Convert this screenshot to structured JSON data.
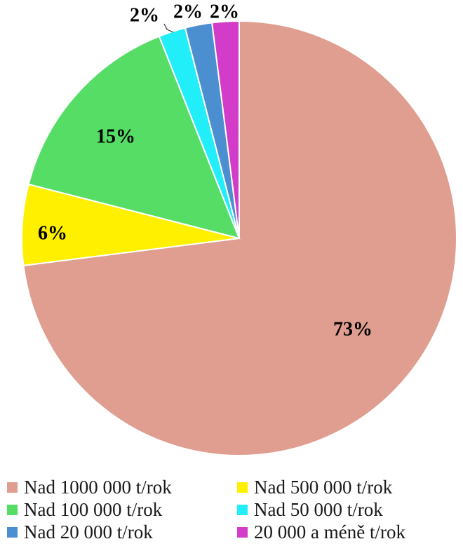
{
  "chart_data": {
    "type": "pie",
    "slices": [
      {
        "label": "Nad 1000 000 t/rok",
        "value": 73,
        "value_label": "73%",
        "color": "#E09E90"
      },
      {
        "label": "Nad 500 000 t/rok",
        "value": 6,
        "value_label": "6%",
        "color": "#FFF000"
      },
      {
        "label": "Nad 100 000 t/rok",
        "value": 15,
        "value_label": "15%",
        "color": "#55DD66"
      },
      {
        "label": "Nad 50 000 t/rok",
        "value": 2,
        "value_label": "2%",
        "color": "#22EEFA"
      },
      {
        "label": "Nad 20 000 t/rok",
        "value": 2,
        "value_label": "2%",
        "color": "#4C8FD0"
      },
      {
        "label": "20 000 a méně t/rok",
        "value": 2,
        "value_label": "2%",
        "color": "#D23CC8"
      }
    ],
    "slice_order_clockwise_from_top": [
      0,
      1,
      2,
      3,
      4,
      5
    ],
    "legend_placement": "bottom",
    "legend_order": [
      0,
      1,
      2,
      3,
      4,
      5
    ]
  }
}
